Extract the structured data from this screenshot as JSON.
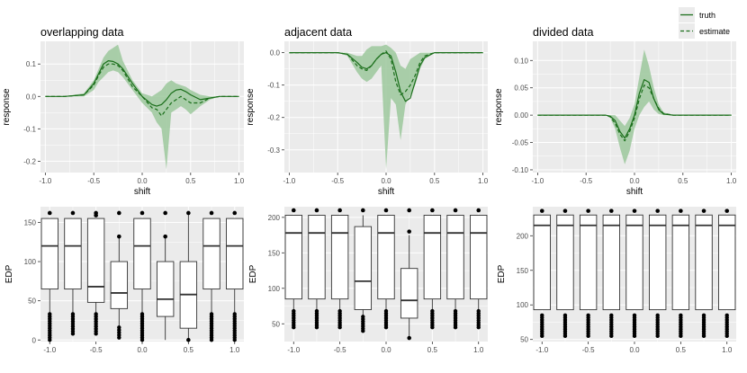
{
  "legend": {
    "entries": [
      {
        "label": "truth",
        "style": "solid"
      },
      {
        "label": "estimate",
        "style": "dashed"
      }
    ]
  },
  "colors": {
    "panel_bg": "#ebebeb",
    "grid": "#ffffff",
    "line": "#1a6e1a",
    "band": "#9cc89c",
    "box_fill": "#ffffff",
    "box_stroke": "#333333",
    "text": "#000000",
    "tick_text": "#4d4d4d"
  },
  "chart_data": [
    {
      "id": "overlap-line",
      "type": "line",
      "title": "overlapping data",
      "xlabel": "shift",
      "ylabel": "response",
      "xlim": [
        -1.05,
        1.05
      ],
      "ylim": [
        -0.235,
        0.17
      ],
      "xticks": [
        -1.0,
        -0.5,
        0.0,
        0.5,
        1.0
      ],
      "xtick_labels": [
        "-1.0",
        "-0.5",
        "0.0",
        "0.5",
        "1.0"
      ],
      "yticks": [
        -0.2,
        -0.1,
        0.0,
        0.1
      ],
      "ytick_labels": [
        "-0.2",
        "-0.1",
        "0.0",
        "0.1"
      ],
      "x": [
        -1.0,
        -0.8,
        -0.6,
        -0.5,
        -0.45,
        -0.4,
        -0.35,
        -0.3,
        -0.25,
        -0.2,
        -0.1,
        0.0,
        0.1,
        0.15,
        0.2,
        0.25,
        0.3,
        0.35,
        0.4,
        0.45,
        0.5,
        0.6,
        0.7,
        0.8,
        1.0
      ],
      "series": [
        {
          "name": "truth",
          "style": "solid",
          "values": [
            0,
            0,
            0.005,
            0.04,
            0.07,
            0.1,
            0.11,
            0.108,
            0.1,
            0.085,
            0.04,
            0,
            -0.025,
            -0.03,
            -0.025,
            -0.01,
            0.01,
            0.02,
            0.022,
            0.015,
            0.005,
            -0.01,
            -0.005,
            0,
            0
          ]
        },
        {
          "name": "estimate",
          "style": "dashed",
          "values": [
            0,
            0,
            0.005,
            0.035,
            0.065,
            0.09,
            0.1,
            0.1,
            0.095,
            0.08,
            0.03,
            0,
            -0.035,
            -0.04,
            -0.06,
            -0.04,
            -0.02,
            -0.01,
            0,
            -0.01,
            -0.02,
            -0.02,
            -0.005,
            0,
            0
          ]
        }
      ],
      "band": {
        "x": [
          -1.0,
          -0.8,
          -0.6,
          -0.5,
          -0.45,
          -0.4,
          -0.35,
          -0.3,
          -0.25,
          -0.2,
          -0.1,
          0.0,
          0.1,
          0.15,
          0.2,
          0.25,
          0.3,
          0.35,
          0.4,
          0.45,
          0.5,
          0.6,
          0.7,
          0.8,
          1.0
        ],
        "lower": [
          0,
          0,
          0,
          0.02,
          0.045,
          0.06,
          0.075,
          0.08,
          0.075,
          0.06,
          0.02,
          -0.02,
          -0.05,
          -0.08,
          -0.1,
          -0.225,
          -0.05,
          -0.04,
          -0.03,
          -0.04,
          -0.055,
          -0.03,
          -0.01,
          0,
          0
        ],
        "upper": [
          0,
          0,
          0.01,
          0.05,
          0.085,
          0.12,
          0.14,
          0.15,
          0.16,
          0.11,
          0.05,
          0.01,
          0,
          0.01,
          0.02,
          0.04,
          0.05,
          0.04,
          0.035,
          0.03,
          0.02,
          0.005,
          0,
          0,
          0
        ]
      }
    },
    {
      "id": "adjacent-line",
      "type": "line",
      "title": "adjacent data",
      "xlabel": "shift",
      "ylabel": "response",
      "xlim": [
        -1.05,
        1.05
      ],
      "ylim": [
        -0.37,
        0.035
      ],
      "xticks": [
        -1.0,
        -0.5,
        0.0,
        0.5,
        1.0
      ],
      "xtick_labels": [
        "-1.0",
        "-0.5",
        "0.0",
        "0.5",
        "1.0"
      ],
      "yticks": [
        -0.3,
        -0.2,
        -0.1,
        0.0
      ],
      "ytick_labels": [
        "-0.3",
        "-0.2",
        "-0.1",
        "0.0"
      ],
      "x": [
        -1.0,
        -0.5,
        -0.4,
        -0.3,
        -0.25,
        -0.2,
        -0.15,
        -0.1,
        -0.05,
        0.0,
        0.05,
        0.1,
        0.15,
        0.2,
        0.25,
        0.3,
        0.35,
        0.4,
        0.5,
        1.0
      ],
      "series": [
        {
          "name": "truth",
          "style": "solid",
          "values": [
            0,
            0,
            -0.005,
            -0.03,
            -0.045,
            -0.05,
            -0.04,
            -0.02,
            -0.005,
            0,
            -0.01,
            -0.06,
            -0.12,
            -0.15,
            -0.14,
            -0.09,
            -0.04,
            -0.015,
            0,
            0
          ]
        },
        {
          "name": "estimate",
          "style": "dashed",
          "values": [
            0,
            0,
            -0.005,
            -0.04,
            -0.05,
            -0.055,
            -0.04,
            -0.02,
            -0.005,
            0.005,
            -0.02,
            -0.09,
            -0.13,
            -0.12,
            -0.1,
            -0.07,
            -0.03,
            -0.01,
            0,
            0
          ]
        }
      ],
      "band": {
        "x": [
          -1.0,
          -0.5,
          -0.4,
          -0.3,
          -0.25,
          -0.2,
          -0.15,
          -0.1,
          -0.05,
          0.0,
          0.05,
          0.1,
          0.15,
          0.2,
          0.25,
          0.3,
          0.35,
          0.4,
          0.5,
          1.0
        ],
        "lower": [
          0,
          0,
          -0.01,
          -0.06,
          -0.08,
          -0.09,
          -0.08,
          -0.06,
          -0.04,
          -0.36,
          -0.14,
          -0.16,
          -0.27,
          -0.16,
          -0.13,
          -0.1,
          -0.05,
          -0.02,
          0,
          0
        ],
        "upper": [
          0,
          0,
          0,
          -0.01,
          -0.01,
          0.01,
          0.02,
          0.02,
          0.02,
          0.025,
          0.015,
          0,
          -0.04,
          -0.05,
          -0.02,
          -0.01,
          0,
          0,
          0,
          0
        ]
      }
    },
    {
      "id": "divided-line",
      "type": "line",
      "title": "divided data",
      "xlabel": "shift",
      "ylabel": "response",
      "xlim": [
        -1.05,
        1.05
      ],
      "ylim": [
        -0.105,
        0.135
      ],
      "xticks": [
        -1.0,
        -0.5,
        0.0,
        0.5,
        1.0
      ],
      "xtick_labels": [
        "-1.0",
        "-0.5",
        "0.0",
        "0.5",
        "1.0"
      ],
      "yticks": [
        -0.1,
        -0.05,
        0.0,
        0.05,
        0.1
      ],
      "ytick_labels": [
        "-0.10",
        "-0.05",
        "0.00",
        "0.05",
        "0.10"
      ],
      "x": [
        -1.0,
        -0.3,
        -0.25,
        -0.2,
        -0.15,
        -0.1,
        -0.05,
        0.0,
        0.05,
        0.1,
        0.15,
        0.2,
        0.25,
        0.3,
        0.4,
        1.0
      ],
      "series": [
        {
          "name": "truth",
          "style": "solid",
          "values": [
            0,
            0,
            -0.002,
            -0.01,
            -0.03,
            -0.042,
            -0.025,
            0,
            0.04,
            0.065,
            0.06,
            0.03,
            0.01,
            0.002,
            0,
            0
          ]
        },
        {
          "name": "estimate",
          "style": "dashed",
          "values": [
            0,
            0,
            -0.003,
            -0.015,
            -0.035,
            -0.047,
            -0.03,
            -0.005,
            0.03,
            0.055,
            0.05,
            0.03,
            0.012,
            0.003,
            0,
            0
          ]
        }
      ],
      "band": {
        "x": [
          -1.0,
          -0.3,
          -0.25,
          -0.2,
          -0.15,
          -0.1,
          -0.05,
          0.0,
          0.05,
          0.1,
          0.15,
          0.2,
          0.25,
          0.3,
          0.4,
          1.0
        ],
        "lower": [
          0,
          0,
          -0.005,
          -0.025,
          -0.06,
          -0.09,
          -0.065,
          -0.025,
          0,
          0.015,
          0.025,
          0.01,
          0.002,
          0,
          0,
          0
        ],
        "upper": [
          0,
          0,
          0,
          0,
          -0.01,
          -0.02,
          -0.005,
          0.02,
          0.07,
          0.12,
          0.09,
          0.05,
          0.02,
          0.005,
          0,
          0
        ]
      }
    },
    {
      "id": "overlap-box",
      "type": "box",
      "xlabel": "",
      "ylabel": "EDP",
      "xlim": [
        -1.1,
        1.1
      ],
      "ylim": [
        -2,
        170
      ],
      "xticks": [
        -1.0,
        -0.5,
        0.0,
        0.5,
        1.0
      ],
      "xtick_labels": [
        "-1.0",
        "-0.5",
        "0.0",
        "0.5",
        "1.0"
      ],
      "yticks": [
        0,
        50,
        100,
        150
      ],
      "ytick_labels": [
        "0",
        "50",
        "100",
        "150"
      ],
      "box_width": 0.18,
      "boxes": [
        {
          "x": -1.0,
          "q1": 65,
          "median": 120,
          "q3": 155,
          "whisker_low": 35,
          "whisker_high": 155,
          "outliers_low": [
            0,
            33
          ],
          "outliers_high": [
            162
          ]
        },
        {
          "x": -0.75,
          "q1": 65,
          "median": 120,
          "q3": 155,
          "whisker_low": 35,
          "whisker_high": 155,
          "outliers_low": [
            8,
            33
          ],
          "outliers_high": [
            162
          ]
        },
        {
          "x": -0.5,
          "q1": 48,
          "median": 68,
          "q3": 155,
          "whisker_low": 35,
          "whisker_high": 155,
          "outliers_low": [
            8,
            33
          ],
          "outliers_high": [
            159,
            162
          ]
        },
        {
          "x": -0.25,
          "q1": 40,
          "median": 60,
          "q3": 100,
          "whisker_low": 18,
          "whisker_high": 130,
          "outliers_low": [
            3,
            16
          ],
          "outliers_high": [
            132,
            162
          ]
        },
        {
          "x": 0.0,
          "q1": 65,
          "median": 120,
          "q3": 155,
          "whisker_low": 35,
          "whisker_high": 155,
          "outliers_low": [
            0,
            33
          ],
          "outliers_high": [
            162
          ]
        },
        {
          "x": 0.25,
          "q1": 30,
          "median": 52,
          "q3": 100,
          "whisker_low": 0,
          "whisker_high": 130,
          "outliers_low": [],
          "outliers_high": [
            132,
            162
          ]
        },
        {
          "x": 0.5,
          "q1": 15,
          "median": 58,
          "q3": 100,
          "whisker_low": 0,
          "whisker_high": 160,
          "outliers_low": [
            0
          ],
          "outliers_high": [
            162
          ]
        },
        {
          "x": 0.75,
          "q1": 65,
          "median": 120,
          "q3": 155,
          "whisker_low": 35,
          "whisker_high": 155,
          "outliers_low": [
            0,
            33
          ],
          "outliers_high": [
            162
          ]
        },
        {
          "x": 1.0,
          "q1": 65,
          "median": 120,
          "q3": 155,
          "whisker_low": 35,
          "whisker_high": 155,
          "outliers_low": [
            0,
            33
          ],
          "outliers_high": [
            162
          ]
        }
      ]
    },
    {
      "id": "adjacent-box",
      "type": "box",
      "xlabel": "",
      "ylabel": "EDP",
      "xlim": [
        -1.1,
        1.1
      ],
      "ylim": [
        25,
        215
      ],
      "xticks": [
        -1.0,
        -0.5,
        0.0,
        0.5,
        1.0
      ],
      "xtick_labels": [
        "-1.0",
        "-0.5",
        "0.0",
        "0.5",
        "1.0"
      ],
      "yticks": [
        50,
        100,
        150,
        200
      ],
      "ytick_labels": [
        "50",
        "100",
        "150",
        "200"
      ],
      "box_width": 0.18,
      "boxes": [
        {
          "x": -1.0,
          "q1": 85,
          "median": 178,
          "q3": 203,
          "whisker_low": 70,
          "whisker_high": 203,
          "outliers_low": [
            45,
            68
          ],
          "outliers_high": [
            210
          ]
        },
        {
          "x": -0.75,
          "q1": 85,
          "median": 178,
          "q3": 203,
          "whisker_low": 70,
          "whisker_high": 203,
          "outliers_low": [
            45,
            68
          ],
          "outliers_high": [
            210
          ]
        },
        {
          "x": -0.5,
          "q1": 85,
          "median": 178,
          "q3": 203,
          "whisker_low": 70,
          "whisker_high": 203,
          "outliers_low": [
            45,
            68
          ],
          "outliers_high": [
            210
          ]
        },
        {
          "x": -0.25,
          "q1": 70,
          "median": 110,
          "q3": 187,
          "whisker_low": 40,
          "whisker_high": 203,
          "outliers_low": [
            40,
            60
          ],
          "outliers_high": [
            210
          ]
        },
        {
          "x": 0.0,
          "q1": 85,
          "median": 178,
          "q3": 203,
          "whisker_low": 70,
          "whisker_high": 203,
          "outliers_low": [
            45,
            68
          ],
          "outliers_high": [
            210
          ]
        },
        {
          "x": 0.25,
          "q1": 58,
          "median": 83,
          "q3": 128,
          "whisker_low": 30,
          "whisker_high": 175,
          "outliers_low": [
            30
          ],
          "outliers_high": [
            180,
            210
          ]
        },
        {
          "x": 0.5,
          "q1": 85,
          "median": 178,
          "q3": 203,
          "whisker_low": 70,
          "whisker_high": 203,
          "outliers_low": [
            45,
            68
          ],
          "outliers_high": [
            210
          ]
        },
        {
          "x": 0.75,
          "q1": 85,
          "median": 178,
          "q3": 203,
          "whisker_low": 70,
          "whisker_high": 203,
          "outliers_low": [
            45,
            68
          ],
          "outliers_high": [
            210
          ]
        },
        {
          "x": 1.0,
          "q1": 85,
          "median": 178,
          "q3": 203,
          "whisker_low": 70,
          "whisker_high": 203,
          "outliers_low": [
            45,
            68
          ],
          "outliers_high": [
            210
          ]
        }
      ]
    },
    {
      "id": "divided-box",
      "type": "box",
      "xlabel": "",
      "ylabel": "EDP",
      "xlim": [
        -1.1,
        1.1
      ],
      "ylim": [
        47,
        242
      ],
      "xticks": [
        -1.0,
        -0.5,
        0.0,
        0.5,
        1.0
      ],
      "xtick_labels": [
        "-1.0",
        "-0.5",
        "0.0",
        "0.5",
        "1.0"
      ],
      "yticks": [
        50,
        100,
        150,
        200
      ],
      "ytick_labels": [
        "50",
        "100",
        "150",
        "200"
      ],
      "box_width": 0.18,
      "boxes": [
        {
          "x": -1.0,
          "q1": 93,
          "median": 215,
          "q3": 230,
          "whisker_low": 93,
          "whisker_high": 230,
          "outliers_low": [
            55,
            85
          ],
          "outliers_high": [
            236
          ]
        },
        {
          "x": -0.75,
          "q1": 93,
          "median": 215,
          "q3": 230,
          "whisker_low": 93,
          "whisker_high": 230,
          "outliers_low": [
            55,
            85
          ],
          "outliers_high": [
            236
          ]
        },
        {
          "x": -0.5,
          "q1": 93,
          "median": 215,
          "q3": 230,
          "whisker_low": 93,
          "whisker_high": 230,
          "outliers_low": [
            55,
            85
          ],
          "outliers_high": [
            236
          ]
        },
        {
          "x": -0.25,
          "q1": 93,
          "median": 215,
          "q3": 230,
          "whisker_low": 93,
          "whisker_high": 230,
          "outliers_low": [
            55,
            85
          ],
          "outliers_high": [
            236
          ]
        },
        {
          "x": 0.0,
          "q1": 93,
          "median": 215,
          "q3": 230,
          "whisker_low": 93,
          "whisker_high": 230,
          "outliers_low": [
            55,
            85
          ],
          "outliers_high": [
            236
          ]
        },
        {
          "x": 0.25,
          "q1": 93,
          "median": 215,
          "q3": 230,
          "whisker_low": 93,
          "whisker_high": 230,
          "outliers_low": [
            55,
            85
          ],
          "outliers_high": [
            236
          ]
        },
        {
          "x": 0.5,
          "q1": 93,
          "median": 215,
          "q3": 230,
          "whisker_low": 93,
          "whisker_high": 230,
          "outliers_low": [
            55,
            85
          ],
          "outliers_high": [
            236
          ]
        },
        {
          "x": 0.75,
          "q1": 93,
          "median": 215,
          "q3": 230,
          "whisker_low": 93,
          "whisker_high": 230,
          "outliers_low": [
            55,
            85
          ],
          "outliers_high": [
            236
          ]
        },
        {
          "x": 1.0,
          "q1": 93,
          "median": 215,
          "q3": 230,
          "whisker_low": 93,
          "whisker_high": 230,
          "outliers_low": [
            55,
            85
          ],
          "outliers_high": [
            236
          ]
        }
      ]
    }
  ]
}
